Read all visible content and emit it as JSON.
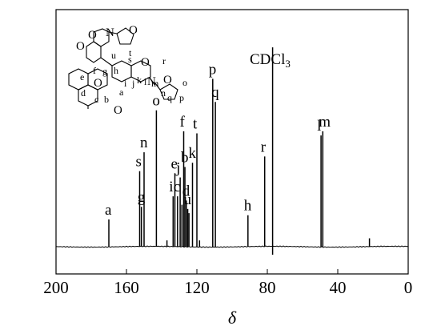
{
  "chart_data": {
    "type": "line",
    "xlabel": "δ",
    "ylabel": "",
    "xlim": [
      200,
      0
    ],
    "x_reversed": true,
    "x_ticks": [
      200,
      160,
      120,
      80,
      40,
      0
    ],
    "x_tick_labels": [
      "200",
      "160",
      "120",
      "80",
      "40",
      "0"
    ],
    "grid": false,
    "peaks": [
      {
        "x": 170.0,
        "height": 0.13,
        "label": "a"
      },
      {
        "x": 152.5,
        "height": 0.36,
        "label": "s"
      },
      {
        "x": 151.5,
        "height": 0.19,
        "label": "g"
      },
      {
        "x": 150.0,
        "height": 0.45,
        "label": "n"
      },
      {
        "x": 143.0,
        "height": 0.65,
        "label": "o"
      },
      {
        "x": 137.0,
        "height": 0.03,
        "label": ""
      },
      {
        "x": 133.5,
        "height": 0.24,
        "label": "i"
      },
      {
        "x": 132.5,
        "height": 0.35,
        "label": "e"
      },
      {
        "x": 131.0,
        "height": 0.24,
        "label": "c"
      },
      {
        "x": 129.5,
        "height": 0.33,
        "label": "j"
      },
      {
        "x": 128.5,
        "height": 0.2,
        "label": ""
      },
      {
        "x": 127.5,
        "height": 0.55,
        "label": "f"
      },
      {
        "x": 126.8,
        "height": 0.38,
        "label": "b"
      },
      {
        "x": 126.0,
        "height": 0.22,
        "label": "d"
      },
      {
        "x": 125.2,
        "height": 0.18,
        "label": "u"
      },
      {
        "x": 124.5,
        "height": 0.16,
        "label": ""
      },
      {
        "x": 122.5,
        "height": 0.4,
        "label": "k"
      },
      {
        "x": 120.0,
        "height": 0.54,
        "label": "t"
      },
      {
        "x": 118.5,
        "height": 0.03,
        "label": ""
      },
      {
        "x": 111.0,
        "height": 0.8,
        "label": "p"
      },
      {
        "x": 109.5,
        "height": 0.69,
        "label": "q"
      },
      {
        "x": 91.0,
        "height": 0.15,
        "label": "h"
      },
      {
        "x": 81.5,
        "height": 0.43,
        "label": "r"
      },
      {
        "x": 77.0,
        "height": 0.95,
        "label": "CDCl3"
      },
      {
        "x": 49.5,
        "height": 0.53,
        "label": "l"
      },
      {
        "x": 48.5,
        "height": 0.55,
        "label": "m"
      },
      {
        "x": 22.0,
        "height": 0.04,
        "label": ""
      }
    ]
  },
  "labels": {
    "solvent_main": "CDCl",
    "solvent_sub": "3"
  },
  "structure": {
    "atom_o_top": "O",
    "atom_n_top": "N",
    "atom_o_furan_top": "O",
    "atom_o_benzox": "O",
    "atom_o_mid": "O",
    "atom_n_mid": "N",
    "atom_o_furan_right": "O",
    "atom_o_lactone": "O",
    "atom_o_carbonyl": "O",
    "letters": [
      "u",
      "s",
      "t",
      "r",
      "e",
      "f",
      "g",
      "h",
      "k",
      "l",
      "m",
      "n",
      "o",
      "i",
      "j",
      "q",
      "p",
      "d",
      "c",
      "b",
      "a"
    ]
  }
}
